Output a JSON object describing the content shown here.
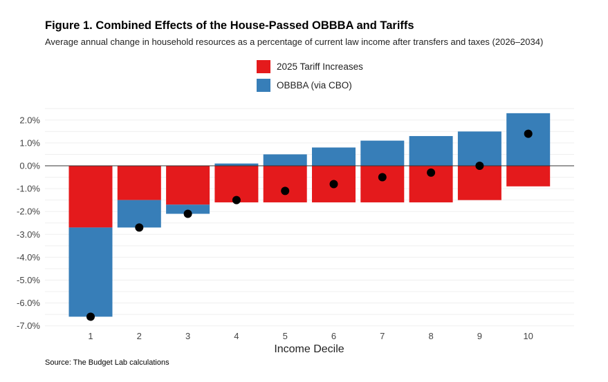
{
  "chart_data": {
    "type": "bar",
    "stacked": true,
    "title": "Figure 1. Combined Effects of the House-Passed OBBBA and Tariffs",
    "subtitle": "Average annual change in household resources as a percentage of current law income after transfers and taxes (2026–2034)",
    "xlabel": "Income Decile",
    "ylabel": "",
    "source": "Source: The Budget Lab calculations",
    "categories": [
      "1",
      "2",
      "3",
      "4",
      "5",
      "6",
      "7",
      "8",
      "9",
      "10"
    ],
    "series": [
      {
        "name": "2025 Tariff Increases",
        "color": "#e41a1c",
        "values": [
          -2.7,
          -1.5,
          -1.7,
          -1.6,
          -1.6,
          -1.6,
          -1.6,
          -1.6,
          -1.5,
          -0.9
        ]
      },
      {
        "name": "OBBBA (via CBO)",
        "color": "#377eb8",
        "values": [
          -3.9,
          -1.2,
          -0.4,
          0.1,
          0.5,
          0.8,
          1.1,
          1.3,
          1.5,
          2.3
        ]
      }
    ],
    "net_points": [
      -6.6,
      -2.7,
      -2.1,
      -1.5,
      -1.1,
      -0.8,
      -0.5,
      -0.3,
      0.0,
      1.4
    ],
    "net_point_color": "#000000",
    "yticks": [
      "2.0%",
      "1.0%",
      "0.0%",
      "-1.0%",
      "-2.0%",
      "-3.0%",
      "-4.0%",
      "-5.0%",
      "-6.0%",
      "-7.0%"
    ],
    "ytick_values": [
      2,
      1,
      0,
      -1,
      -2,
      -3,
      -4,
      -5,
      -6,
      -7
    ],
    "ylim": [
      -7.2,
      2.5
    ],
    "grid": true,
    "legend_position": "top-center"
  }
}
